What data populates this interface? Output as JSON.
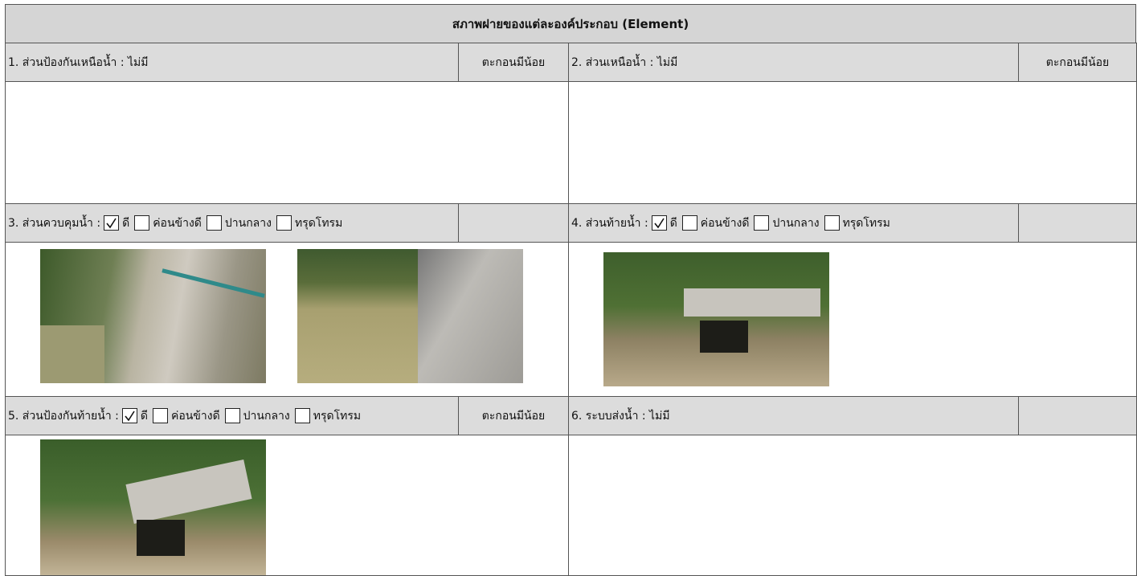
{
  "title": "สภาพฝายของแต่ละองค์ประกอบ (Element)",
  "sections": [
    {
      "label": "1. ส่วนป้องกันเหนือน้ำ : ไม่มี",
      "status": "ตะกอนมีน้อย"
    },
    {
      "label": "2. ส่วนเหนือน้ำ : ไม่มี",
      "status": "ตะกอนมีน้อย"
    },
    {
      "label": "3. ส่วนควบคุมน้ำ :",
      "options": [
        {
          "text": "ดี",
          "checked": true
        },
        {
          "text": "ค่อนข้างดี",
          "checked": false
        },
        {
          "text": "ปานกลาง",
          "checked": false
        },
        {
          "text": "ทรุดโทรม",
          "checked": false
        }
      ]
    },
    {
      "label": "4. ส่วนท้ายน้ำ :",
      "options": [
        {
          "text": "ดี",
          "checked": true
        },
        {
          "text": "ค่อนข้างดี",
          "checked": false
        },
        {
          "text": "ปานกลาง",
          "checked": false
        },
        {
          "text": "ทรุดโทรม",
          "checked": false
        }
      ]
    },
    {
      "label": "5. ส่วนป้องกันท้ายน้ำ :",
      "options": [
        {
          "text": "ดี",
          "checked": true
        },
        {
          "text": "ค่อนข้างดี",
          "checked": false
        },
        {
          "text": "ปานกลาง",
          "checked": false
        },
        {
          "text": "ทรุดโทรม",
          "checked": false
        }
      ],
      "status": "ตะกอนมีน้อย"
    },
    {
      "label": "6. ระบบส่งน้ำ : ไม่มี"
    }
  ]
}
